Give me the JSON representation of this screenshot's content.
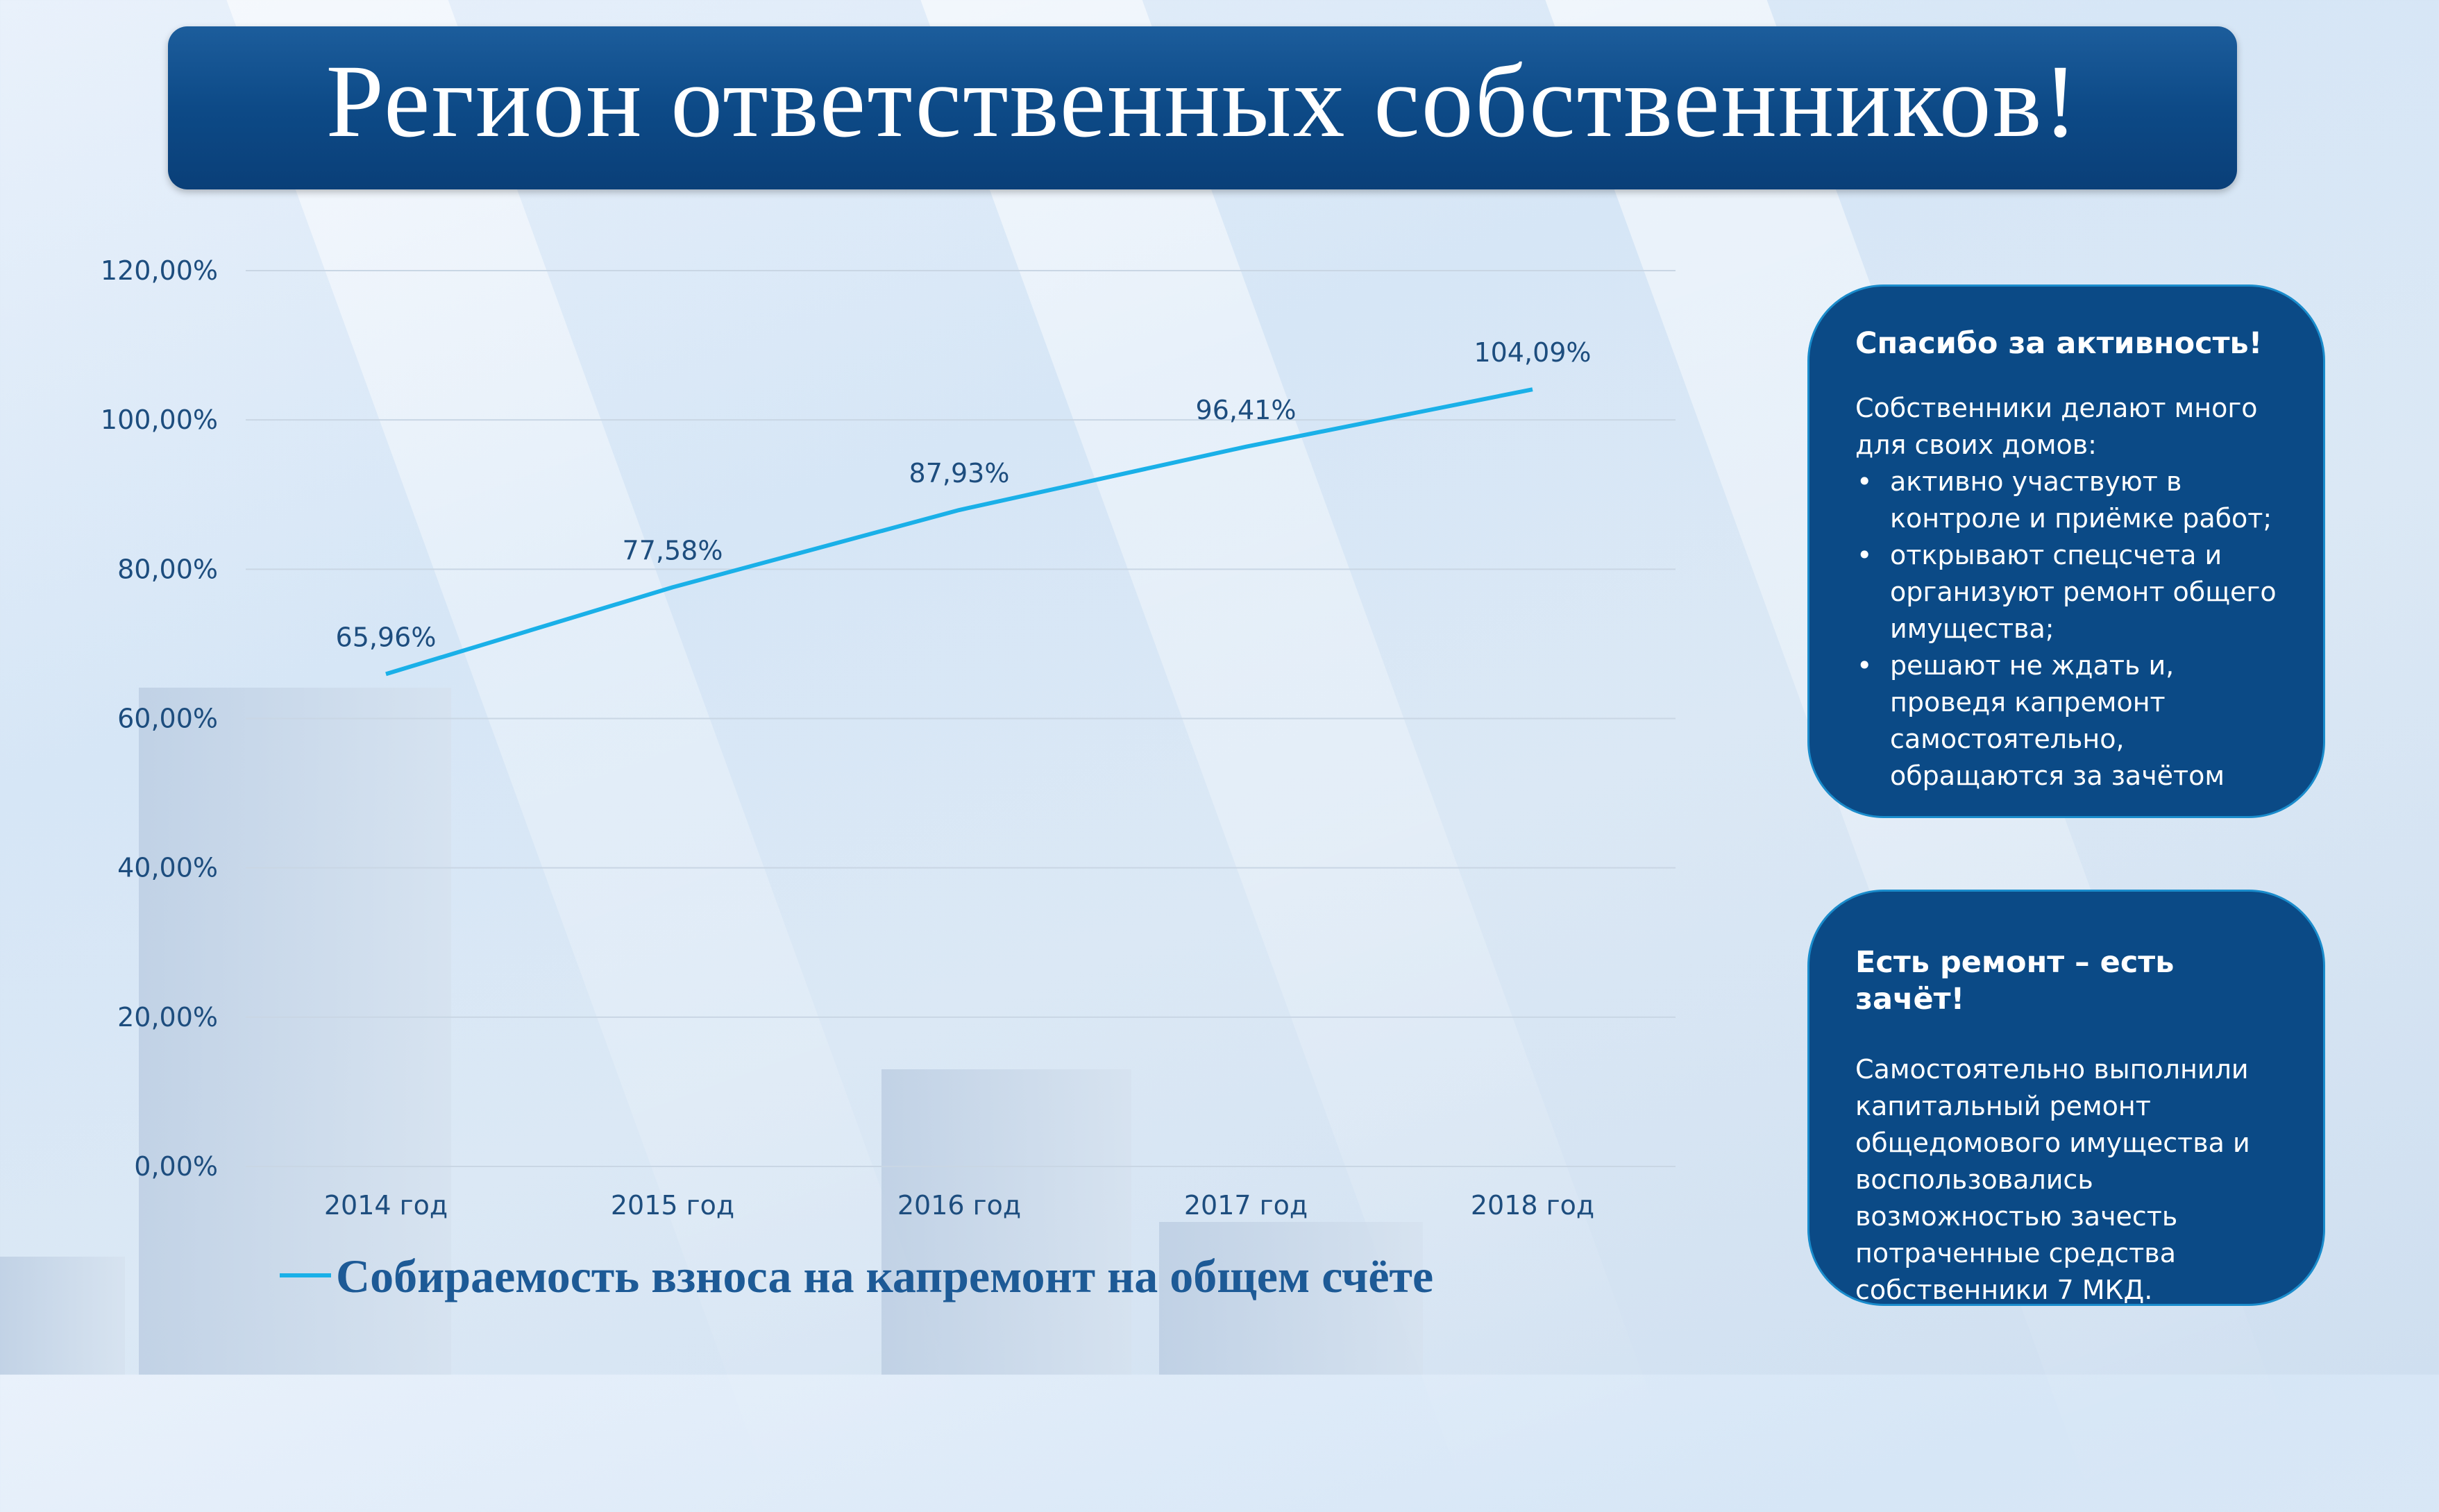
{
  "title": "Регион ответственных собственников!",
  "chart_data": {
    "type": "line",
    "categories": [
      "2014 год",
      "2015 год",
      "2016 год",
      "2017 год",
      "2018 год"
    ],
    "series": [
      {
        "name": "Собираемость взноса на капремонт на общем счёте",
        "values": [
          65.96,
          77.58,
          87.93,
          96.41,
          104.09
        ],
        "labels": [
          "65,96%",
          "77,58%",
          "87,93%",
          "96,41%",
          "104,09%"
        ],
        "color": "#1ab0e8"
      }
    ],
    "yticks": [
      "0,00%",
      "20,00%",
      "40,00%",
      "60,00%",
      "80,00%",
      "100,00%",
      "120,00%"
    ],
    "ylim": [
      0,
      120
    ],
    "grid": true,
    "legend": "bottom"
  },
  "box1": {
    "heading": "Спасибо за активность!",
    "intro": "Собственники делают много для своих домов:",
    "items": [
      "активно участвуют в контроле и приёмке работ;",
      "открывают спецсчета и организуют ремонт общего имущества;",
      "решают не ждать и, проведя капремонт самостоятельно, обращаются за зачётом"
    ]
  },
  "box2": {
    "heading": "Есть ремонт – есть зачёт!",
    "text": "Самостоятельно выполнили капитальный ремонт общедомового имущества и воспользовались возможностью зачесть потраченные средства собственники 7 МКД."
  }
}
